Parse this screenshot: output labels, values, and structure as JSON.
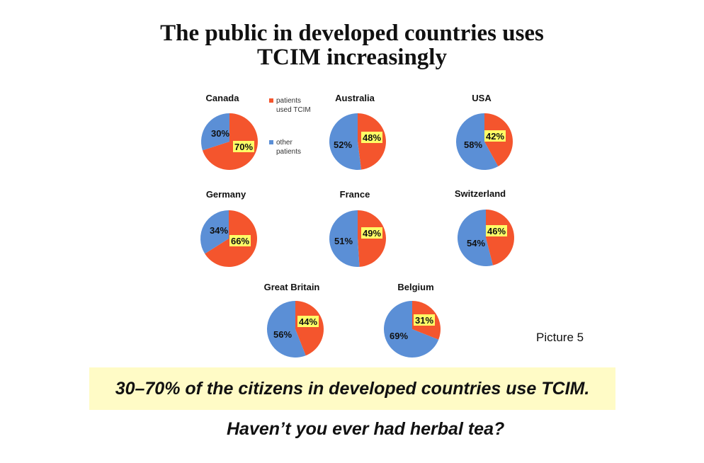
{
  "header": {
    "title_line1": "The public in developed countries uses",
    "title_line2": "TCIM increasingly"
  },
  "legend": {
    "items": [
      {
        "line1": "patients",
        "line2": "used TCIM",
        "color": "#f4552d"
      },
      {
        "line1": "other",
        "line2": "patients",
        "color": "#5b8fd6"
      }
    ]
  },
  "colors": {
    "tcim": "#f4552d",
    "other": "#5b8fd6",
    "label_bg": "#ffff66",
    "banner_bg": "#fffbc6"
  },
  "chart_data": [
    {
      "type": "pie",
      "title": "Canada",
      "slices": [
        {
          "name": "patients used TCIM",
          "value": 70,
          "label": "70%"
        },
        {
          "name": "other patients",
          "value": 30,
          "label": "30%"
        }
      ]
    },
    {
      "type": "pie",
      "title": "Australia",
      "slices": [
        {
          "name": "patients used TCIM",
          "value": 48,
          "label": "48%"
        },
        {
          "name": "other patients",
          "value": 52,
          "label": "52%"
        }
      ]
    },
    {
      "type": "pie",
      "title": "USA",
      "slices": [
        {
          "name": "patients used TCIM",
          "value": 42,
          "label": "42%"
        },
        {
          "name": "other patients",
          "value": 58,
          "label": "58%"
        }
      ]
    },
    {
      "type": "pie",
      "title": "Germany",
      "slices": [
        {
          "name": "patients used TCIM",
          "value": 66,
          "label": "66%"
        },
        {
          "name": "other patients",
          "value": 34,
          "label": "34%"
        }
      ]
    },
    {
      "type": "pie",
      "title": "France",
      "slices": [
        {
          "name": "patients used TCIM",
          "value": 49,
          "label": "49%"
        },
        {
          "name": "other patients",
          "value": 51,
          "label": "51%"
        }
      ]
    },
    {
      "type": "pie",
      "title": "Switzerland",
      "slices": [
        {
          "name": "patients used TCIM",
          "value": 46,
          "label": "46%"
        },
        {
          "name": "other patients",
          "value": 54,
          "label": "54%"
        }
      ]
    },
    {
      "type": "pie",
      "title": "Great Britain",
      "slices": [
        {
          "name": "patients used TCIM",
          "value": 44,
          "label": "44%"
        },
        {
          "name": "other patients",
          "value": 56,
          "label": "56%"
        }
      ]
    },
    {
      "type": "pie",
      "title": "Belgium",
      "slices": [
        {
          "name": "patients used TCIM",
          "value": 31,
          "label": "31%"
        },
        {
          "name": "other patients",
          "value": 69,
          "label": "69%"
        }
      ]
    }
  ],
  "picture_label": "Picture 5",
  "banner_text": "30–70% of the citizens in developed countries use TCIM.",
  "question": "Haven’t you ever had herbal tea?"
}
